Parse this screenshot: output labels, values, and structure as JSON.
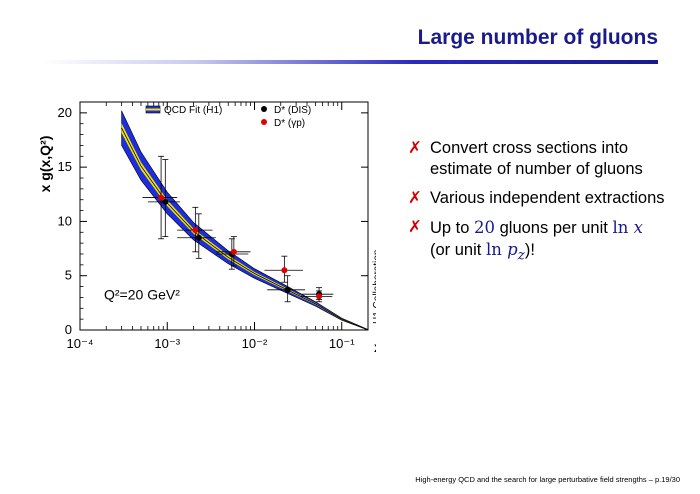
{
  "slide": {
    "title": "Large number of gluons",
    "footer": "High-energy QCD and the search for large perturbative field strengths – p.19/30"
  },
  "bullets": [
    {
      "icon": "red-x-icon",
      "text": "Convert cross sections into estimate of number of gluons"
    },
    {
      "icon": "red-x-icon",
      "text": "Various independent extractions"
    },
    {
      "icon": "red-x-icon",
      "pre": "Up to ",
      "m1": "20",
      "mid": " gluons per unit ",
      "m2_fn": "ln",
      "m2_var": "x",
      "line2_pre": "(or unit ",
      "m3_fn": "ln",
      "m3_var": "p",
      "m3_sub": "z",
      "line2_post": ")!"
    }
  ],
  "chart_data": {
    "type": "scatter",
    "xlabel": "x",
    "ylabel": "x g(x,Q²)",
    "xscale": "log",
    "xlim": [
      0.0001,
      0.2
    ],
    "ylim": [
      0,
      21
    ],
    "x_ticks": [
      "10⁻⁴",
      "10⁻³",
      "10⁻²",
      "10⁻¹"
    ],
    "y_ticks": [
      "0",
      "5",
      "10",
      "15",
      "20"
    ],
    "annotation": "Q²=20 GeV²",
    "side_label": "H1 Collaboration",
    "legend": [
      "QCD Fit (H1)",
      "D* (DIS)",
      "D* (γp)"
    ],
    "legend_position": "top",
    "colors": {
      "band_outer": "#1c2ee0",
      "band_inner": "#f5e600",
      "dis": "#000000",
      "gp": "#e00000"
    },
    "qcd_fit": {
      "x": [
        0.0003,
        0.0005,
        0.001,
        0.002,
        0.005,
        0.01,
        0.02,
        0.05,
        0.1,
        0.2
      ],
      "y": [
        18.6,
        15.1,
        11.7,
        9.1,
        6.7,
        5.2,
        4.0,
        2.4,
        1.0,
        0.0
      ],
      "band": [
        1.6,
        1.3,
        1.0,
        0.8,
        0.6,
        0.45,
        0.35,
        0.2,
        0.1,
        0.05
      ],
      "inner_band": [
        0.45,
        0.35,
        0.28,
        0.22,
        0.18,
        0.14,
        0.12,
        0.08,
        0.05,
        0.02
      ]
    },
    "series": [
      {
        "name": "D* (DIS)",
        "points": [
          {
            "x": 0.00095,
            "y": 11.8,
            "xlo": 0.0006,
            "xhi": 0.0014,
            "ylo": 8.6,
            "yhi": 15.7
          },
          {
            "x": 0.0023,
            "y": 8.5,
            "xlo": 0.0013,
            "xhi": 0.0036,
            "ylo": 6.6,
            "yhi": 10.7
          },
          {
            "x": 0.0055,
            "y": 7.0,
            "xlo": 0.0036,
            "xhi": 0.0085,
            "ylo": 5.6,
            "yhi": 8.4
          },
          {
            "x": 0.024,
            "y": 3.7,
            "xlo": 0.014,
            "xhi": 0.038,
            "ylo": 2.6,
            "yhi": 5.0
          },
          {
            "x": 0.055,
            "y": 3.3,
            "xlo": 0.035,
            "xhi": 0.08,
            "ylo": 2.8,
            "yhi": 3.9
          }
        ]
      },
      {
        "name": "D* (γp)",
        "points": [
          {
            "x": 0.00085,
            "y": 12.2,
            "xlo": 0.00052,
            "xhi": 0.0013,
            "ylo": 8.4,
            "yhi": 16.0
          },
          {
            "x": 0.0021,
            "y": 9.2,
            "xlo": 0.0013,
            "xhi": 0.0033,
            "ylo": 7.2,
            "yhi": 11.3
          },
          {
            "x": 0.0058,
            "y": 7.2,
            "xlo": 0.0036,
            "xhi": 0.009,
            "ylo": 5.9,
            "yhi": 8.6
          },
          {
            "x": 0.022,
            "y": 5.5,
            "xlo": 0.013,
            "xhi": 0.036,
            "ylo": 4.4,
            "yhi": 6.8
          },
          {
            "x": 0.055,
            "y": 3.1,
            "xlo": 0.034,
            "xhi": 0.078,
            "ylo": 2.6,
            "yhi": 3.6
          }
        ]
      }
    ]
  }
}
